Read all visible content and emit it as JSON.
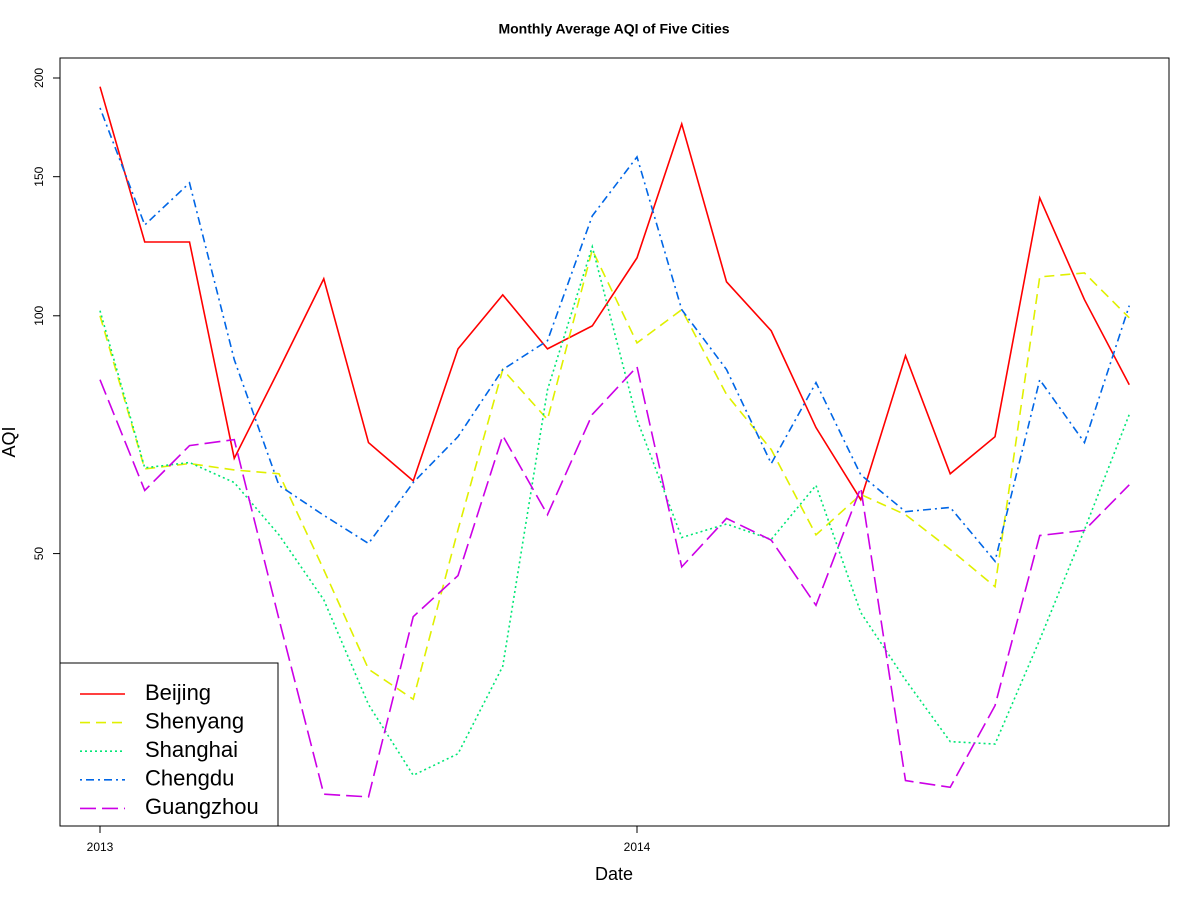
{
  "chart_data": {
    "type": "line",
    "title": "Monthly Average AQI of Five Cities",
    "x_label": "Date",
    "y_label": "AQI",
    "x": [
      2013,
      2013.0833,
      2013.1667,
      2013.25,
      2013.3333,
      2013.4167,
      2013.5,
      2013.5833,
      2013.6667,
      2013.75,
      2013.8333,
      2013.9167,
      2014,
      2014.0833,
      2014.1667,
      2014.25,
      2014.3333,
      2014.4167,
      2014.5,
      2014.5833,
      2014.6667,
      2014.75,
      2014.8333,
      2014.9167
    ],
    "xlim": [
      2012.9255,
      2014.9907
    ],
    "xticks": [
      2013,
      2014
    ],
    "ylim": [
      22.6,
      212
    ],
    "yticks": [
      50,
      100,
      150,
      200
    ],
    "log_y": true,
    "legend": "bottomleft",
    "series": [
      {
        "name": "Beijing",
        "color": "#ff0000",
        "dash": "solid",
        "values": [
          195,
          124,
          124,
          66,
          85.5,
          111.4,
          69.1,
          61.8,
          90.8,
          106.3,
          90.8,
          97.1,
          118.4,
          174.9,
          110.4,
          95.7,
          72.2,
          58.5,
          89,
          63.1,
          70.3,
          141,
          104.8,
          81.8
        ]
      },
      {
        "name": "Shenyang",
        "color": "#e0f000",
        "dash": "dashed",
        "values": [
          100,
          64,
          65,
          63.8,
          63.1,
          47.7,
          35.7,
          32.7,
          53.6,
          85.5,
          73.9,
          121.2,
          92.4,
          101.8,
          79.5,
          67.7,
          52.8,
          59.4,
          56,
          50.6,
          45.4,
          112,
          113.3,
          99.4
        ]
      },
      {
        "name": "Shanghai",
        "color": "#00e676",
        "dash": "dotted",
        "values": [
          101.5,
          64.2,
          65.2,
          61.5,
          52.8,
          43.7,
          32.2,
          26.2,
          27.9,
          36,
          80.6,
          122.3,
          73.9,
          52.4,
          54.5,
          52.1,
          61,
          42.1,
          34.6,
          28.9,
          28.7,
          38.9,
          53.6,
          75
        ]
      },
      {
        "name": "Chengdu",
        "color": "#0066e6",
        "dash": "dotdash",
        "values": [
          183.3,
          130.3,
          147.3,
          88,
          61,
          55.9,
          51.5,
          61.5,
          70.3,
          85.5,
          93,
          133.8,
          158.9,
          101.8,
          85.5,
          65,
          82.3,
          62.9,
          56.5,
          57.2,
          48.9,
          83,
          69.1,
          103
        ]
      },
      {
        "name": "Guangzhou",
        "color": "#cc00e6",
        "dash": "longdash",
        "values": [
          83,
          60.1,
          68.5,
          69.7,
          41.3,
          24.8,
          24.6,
          41.6,
          46.9,
          70.5,
          56,
          75,
          86.2,
          48.1,
          55.4,
          52,
          43,
          60.6,
          25.8,
          25.3,
          32.1,
          52.7,
          53.5,
          61.1
        ]
      }
    ]
  }
}
